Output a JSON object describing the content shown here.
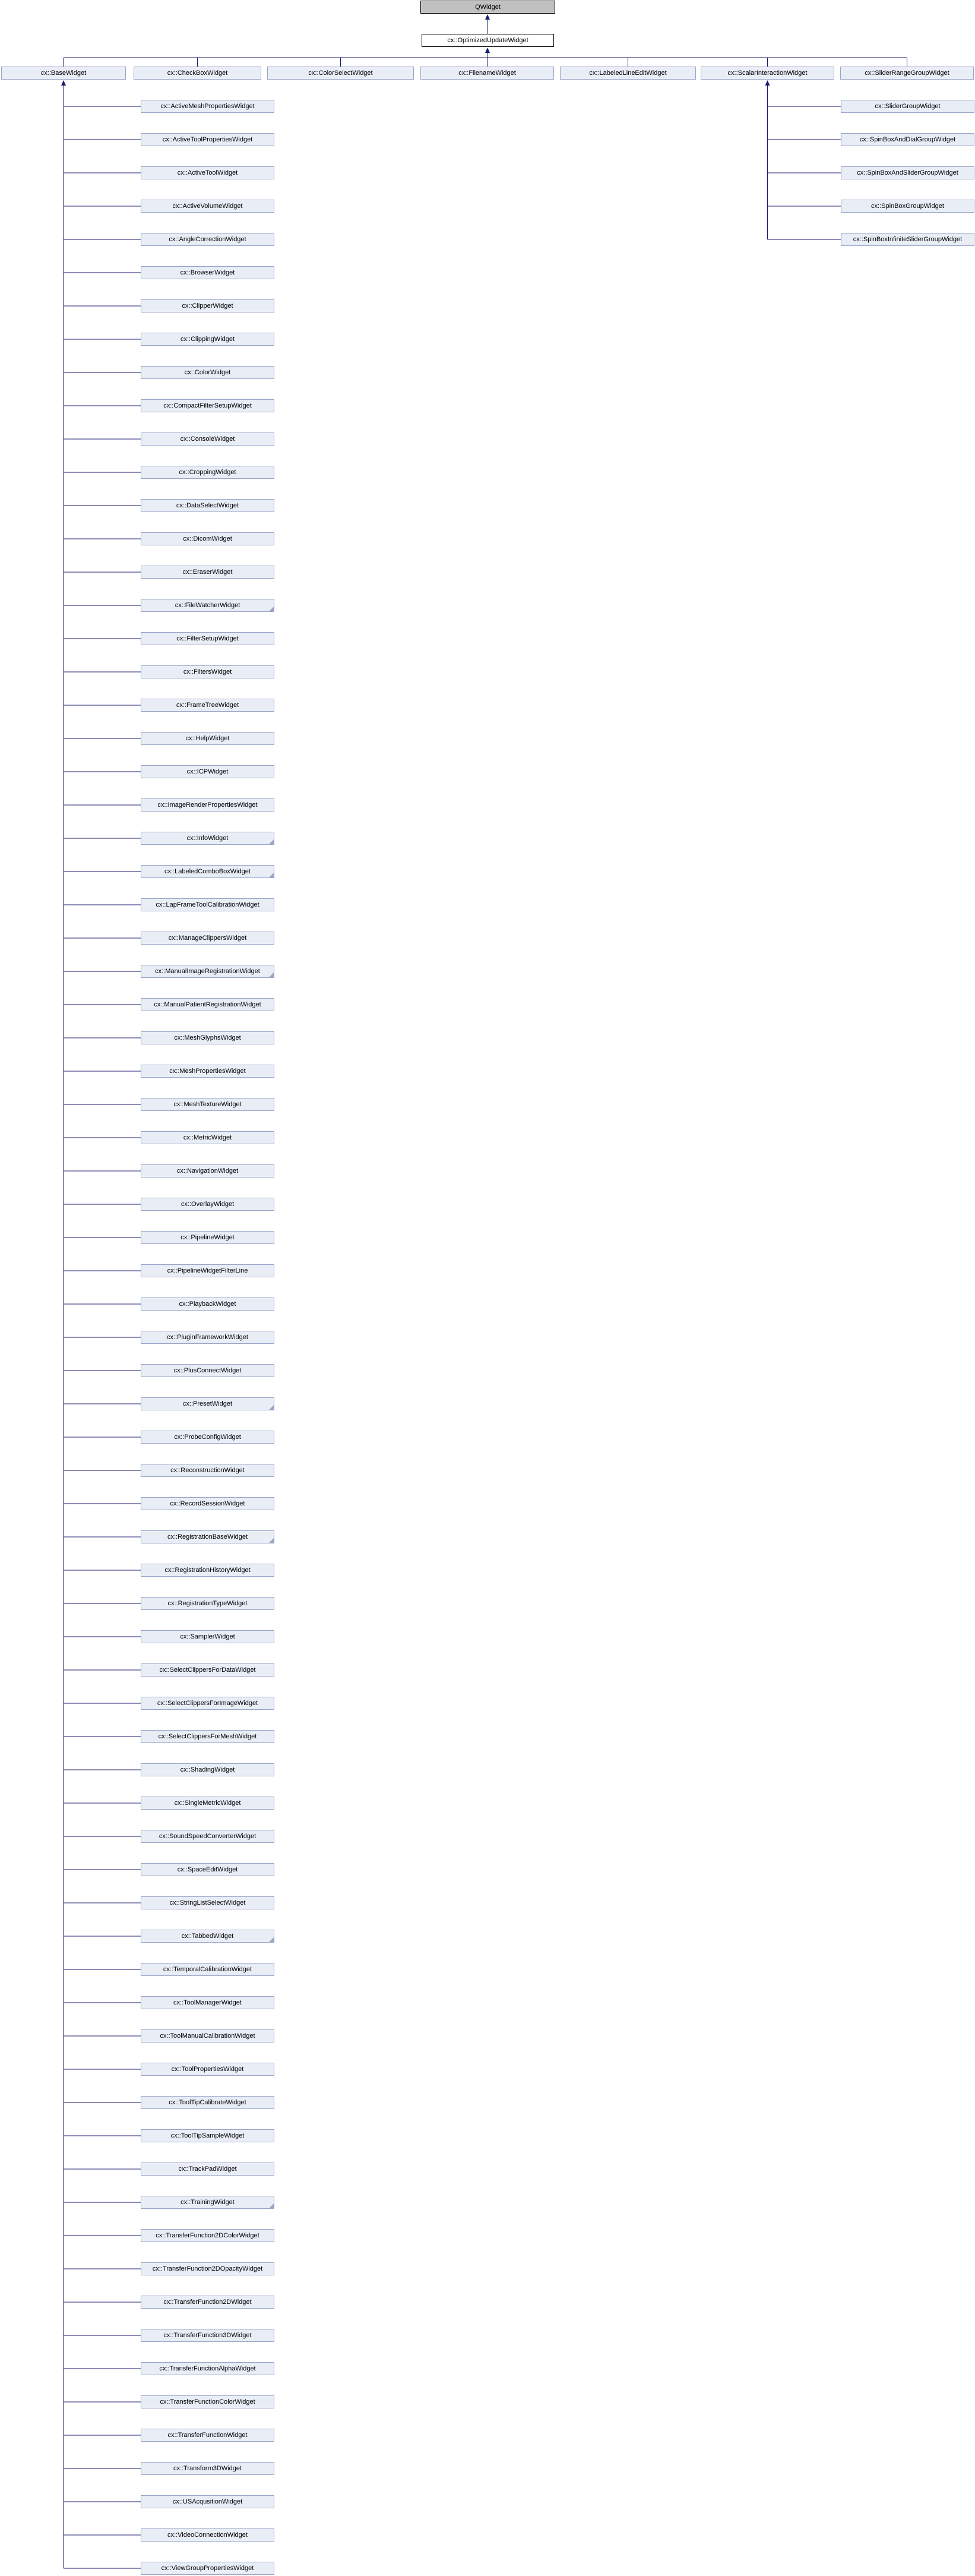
{
  "diagram": {
    "root": {
      "label": "QWidget"
    },
    "current": {
      "label": "cx::OptimizedUpdateWidget"
    },
    "subclasses": [
      {
        "label": "cx::BaseWidget"
      },
      {
        "label": "cx::CheckBoxWidget"
      },
      {
        "label": "cx::ColorSelectWidget"
      },
      {
        "label": "cx::FilenameWidget"
      },
      {
        "label": "cx::LabeledLineEditWidget"
      },
      {
        "label": "cx::ScalarInteractionWidget"
      },
      {
        "label": "cx::SliderRangeGroupWidget"
      }
    ],
    "base_widget_subclasses": [
      "cx::ActiveMeshPropertiesWidget",
      "cx::ActiveToolPropertiesWidget",
      "cx::ActiveToolWidget",
      "cx::ActiveVolumeWidget",
      "cx::AngleCorrectionWidget",
      "cx::BrowserWidget",
      "cx::ClipperWidget",
      "cx::ClippingWidget",
      "cx::ColorWidget",
      "cx::CompactFilterSetupWidget",
      "cx::ConsoleWidget",
      "cx::CroppingWidget",
      "cx::DataSelectWidget",
      "cx::DicomWidget",
      "cx::EraserWidget",
      "cx::FileWatcherWidget",
      "cx::FilterSetupWidget",
      "cx::FiltersWidget",
      "cx::FrameTreeWidget",
      "cx::HelpWidget",
      "cx::ICPWidget",
      "cx::ImageRenderPropertiesWidget",
      "cx::InfoWidget",
      "cx::LabeledComboBoxWidget",
      "cx::LapFrameToolCalibrationWidget",
      "cx::ManageClippersWidget",
      "cx::ManualImageRegistrationWidget",
      "cx::ManualPatientRegistrationWidget",
      "cx::MeshGlyphsWidget",
      "cx::MeshPropertiesWidget",
      "cx::MeshTextureWidget",
      "cx::MetricWidget",
      "cx::NavigationWidget",
      "cx::OverlayWidget",
      "cx::PipelineWidget",
      "cx::PipelineWidgetFilterLine",
      "cx::PlaybackWidget",
      "cx::PluginFrameworkWidget",
      "cx::PlusConnectWidget",
      "cx::PresetWidget",
      "cx::ProbeConfigWidget",
      "cx::ReconstructionWidget",
      "cx::RecordSessionWidget",
      "cx::RegistrationBaseWidget",
      "cx::RegistrationHistoryWidget",
      "cx::RegistrationTypeWidget",
      "cx::SamplerWidget",
      "cx::SelectClippersForDataWidget",
      "cx::SelectClippersForImageWidget",
      "cx::SelectClippersForMeshWidget",
      "cx::ShadingWidget",
      "cx::SingleMetricWidget",
      "cx::SoundSpeedConverterWidget",
      "cx::SpaceEditWidget",
      "cx::StringListSelectWidget",
      "cx::TabbedWidget",
      "cx::TemporalCalibrationWidget",
      "cx::ToolManagerWidget",
      "cx::ToolManualCalibrationWidget",
      "cx::ToolPropertiesWidget",
      "cx::ToolTipCalibrateWidget",
      "cx::ToolTipSampleWidget",
      "cx::TrackPadWidget",
      "cx::TrainingWidget",
      "cx::TransferFunction2DColorWidget",
      "cx::TransferFunction2DOpacityWidget",
      "cx::TransferFunction2DWidget",
      "cx::TransferFunction3DWidget",
      "cx::TransferFunctionAlphaWidget",
      "cx::TransferFunctionColorWidget",
      "cx::TransferFunctionWidget",
      "cx::Transform3DWidget",
      "cx::USAcqusitionWidget",
      "cx::VideoConnectionWidget",
      "cx::ViewGroupPropertiesWidget"
    ],
    "scalar_interaction_subclasses": [
      "cx::SliderGroupWidget",
      "cx::SpinBoxAndDialGroupWidget",
      "cx::SpinBoxAndSliderGroupWidget",
      "cx::SpinBoxGroupWidget",
      "cx::SpinBoxInfiniteSliderGroupWidget"
    ],
    "has_more_subclasses": [
      "cx::FileWatcherWidget",
      "cx::InfoWidget",
      "cx::LabeledComboBoxWidget",
      "cx::ManualImageRegistrationWidget",
      "cx::PresetWidget",
      "cx::RegistrationBaseWidget",
      "cx::TabbedWidget",
      "cx::TrainingWidget"
    ],
    "colors": {
      "node_fill": "#e8edf6",
      "node_border": "#9aa5c8",
      "edge": "#191970",
      "external_fill": "#c0c0c0",
      "external_border": "#000000",
      "current_fill": "#ffffff",
      "current_border": "#000000"
    }
  }
}
